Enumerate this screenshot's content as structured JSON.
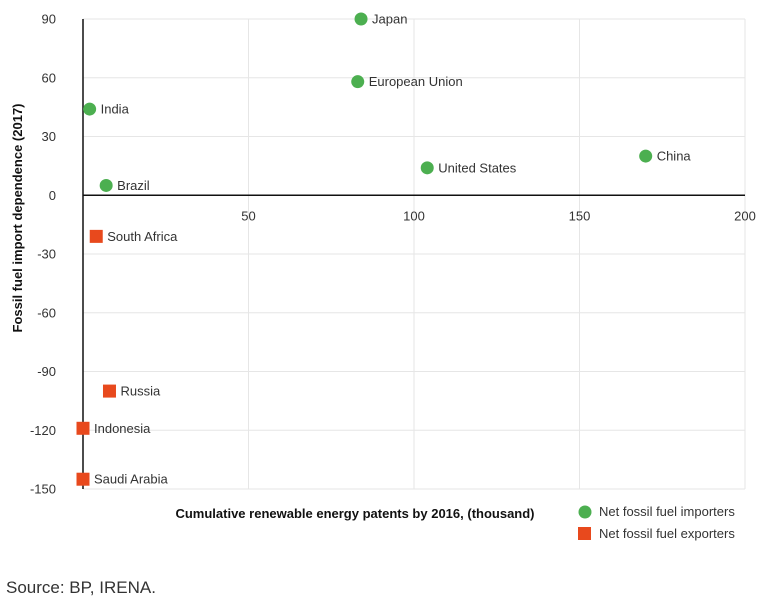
{
  "chart_data": {
    "type": "scatter",
    "xlabel": "Cumulative renewable energy patents by 2016, (thousand)",
    "ylabel": "Fossil fuel import dependence (2017)",
    "xlim": [
      0,
      200
    ],
    "ylim": [
      -150,
      90
    ],
    "xticks": [
      50,
      100,
      150,
      200
    ],
    "yticks": [
      90,
      60,
      30,
      0,
      -30,
      -60,
      -90,
      -120,
      -150
    ],
    "grid": true,
    "legend_position": "bottom-right",
    "series": [
      {
        "name": "Net fossil fuel importers",
        "marker": "circle",
        "color": "#4caf50",
        "points": [
          {
            "label": "Japan",
            "x": 84,
            "y": 90
          },
          {
            "label": "European Union",
            "x": 83,
            "y": 58
          },
          {
            "label": "India",
            "x": 2,
            "y": 44
          },
          {
            "label": "United States",
            "x": 104,
            "y": 14
          },
          {
            "label": "China",
            "x": 170,
            "y": 20
          },
          {
            "label": "Brazil",
            "x": 7,
            "y": 5
          }
        ]
      },
      {
        "name": "Net fossil fuel exporters",
        "marker": "square",
        "color": "#e8491d",
        "points": [
          {
            "label": "South Africa",
            "x": 4,
            "y": -21
          },
          {
            "label": "Russia",
            "x": 8,
            "y": -100
          },
          {
            "label": "Indonesia",
            "x": 0,
            "y": -119
          },
          {
            "label": "Saudi Arabia",
            "x": 0,
            "y": -145
          }
        ]
      }
    ]
  },
  "footer": {
    "source": "Source: BP, IRENA."
  }
}
